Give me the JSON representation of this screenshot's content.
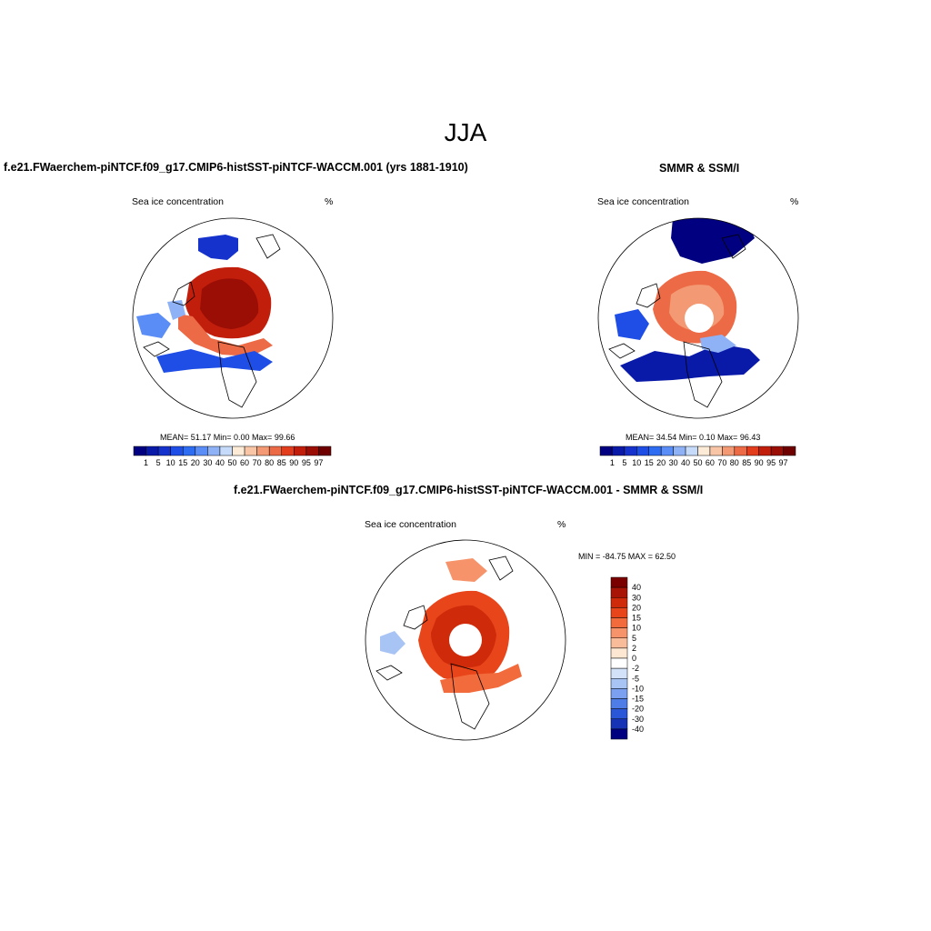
{
  "main_title": "JJA",
  "panels": [
    {
      "title": "f.e21.FWaerchem-piNTCF.f09_g17.CMIP6-histSST-piNTCF-WACCM.001 (yrs 1881-1910)",
      "variable": "Sea ice concentration",
      "units": "%",
      "stats": "MEAN=  51.17  Min=   0.00  Max=  99.66"
    },
    {
      "title": "SMMR & SSM/I",
      "variable": "Sea ice concentration",
      "units": "%",
      "stats": "MEAN=  34.54  Min=   0.10  Max=  96.43"
    },
    {
      "title": "f.e21.FWaerchem-piNTCF.f09_g17.CMIP6-histSST-piNTCF-WACCM.001 - SMMR & SSM/I",
      "variable": "Sea ice concentration",
      "units": "%",
      "stats": "MIN = -84.75 MAX =  62.50"
    }
  ],
  "colorbar_abs": {
    "labels": [
      "1",
      "5",
      "10",
      "15",
      "20",
      "30",
      "40",
      "50",
      "60",
      "70",
      "80",
      "85",
      "90",
      "95",
      "97"
    ],
    "colors": [
      "#000080",
      "#0a1aa8",
      "#1533cc",
      "#1f4ee6",
      "#2e6cf2",
      "#5a8df5",
      "#8fb2f7",
      "#c6daf9",
      "#fcebd6",
      "#f8c6a6",
      "#f39a74",
      "#ec6a45",
      "#e23d1c",
      "#c21e0c",
      "#9a0e05",
      "#6e0000"
    ]
  },
  "colorbar_diff": {
    "labels": [
      "40",
      "30",
      "20",
      "15",
      "10",
      "5",
      "2",
      "0",
      "-2",
      "-5",
      "-10",
      "-15",
      "-20",
      "-30",
      "-40"
    ],
    "colors": [
      "#7a0000",
      "#a81405",
      "#cf2a0a",
      "#e8461a",
      "#f26b3c",
      "#f6936a",
      "#f9bc9b",
      "#fde6d2",
      "#ffffff",
      "#d3e2f9",
      "#a8c4f5",
      "#7aa0ef",
      "#4f7de8",
      "#2a56d8",
      "#1533b4",
      "#000080"
    ]
  }
}
